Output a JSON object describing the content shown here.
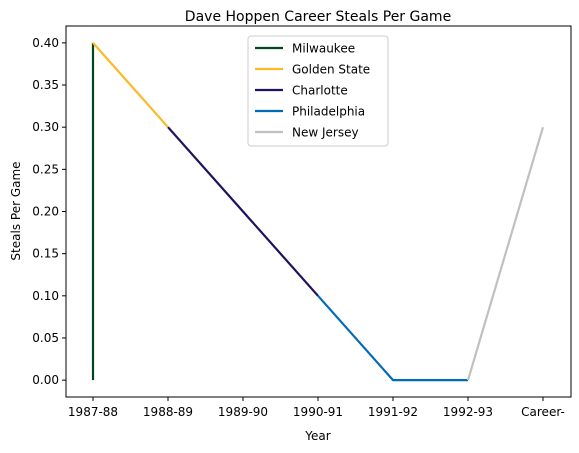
{
  "chart_data": {
    "type": "line",
    "title": "Dave Hoppen Career Steals Per Game",
    "xlabel": "Year",
    "ylabel": "Steals Per Game",
    "categories": [
      "1987-88",
      "1988-89",
      "1989-90",
      "1990-91",
      "1991-92",
      "1992-93",
      "Career-"
    ],
    "yticks": [
      "0.00",
      "0.05",
      "0.10",
      "0.15",
      "0.20",
      "0.25",
      "0.30",
      "0.35",
      "0.40"
    ],
    "ylim": [
      -0.02,
      0.42
    ],
    "grid": false,
    "legend_position": "top-center",
    "series": [
      {
        "name": "Milwaukee",
        "color": "#00471b",
        "points": [
          [
            "1987-88",
            0.0
          ],
          [
            "1987-88",
            0.4
          ]
        ]
      },
      {
        "name": "Golden State",
        "color": "#fdb927",
        "points": [
          [
            "1987-88",
            0.4
          ],
          [
            "1988-89",
            0.3
          ]
        ]
      },
      {
        "name": "Charlotte",
        "color": "#1d1160",
        "points": [
          [
            "1988-89",
            0.3
          ],
          [
            "1989-90",
            0.2
          ],
          [
            "1990-91",
            0.1
          ]
        ]
      },
      {
        "name": "Philadelphia",
        "color": "#006bb6",
        "points": [
          [
            "1990-91",
            0.1
          ],
          [
            "1991-92",
            0.0
          ],
          [
            "1992-93",
            0.0
          ]
        ]
      },
      {
        "name": "New Jersey",
        "color": "#c0c0c0",
        "points": [
          [
            "1992-93",
            0.0
          ],
          [
            "Career-",
            0.3
          ]
        ]
      }
    ]
  }
}
